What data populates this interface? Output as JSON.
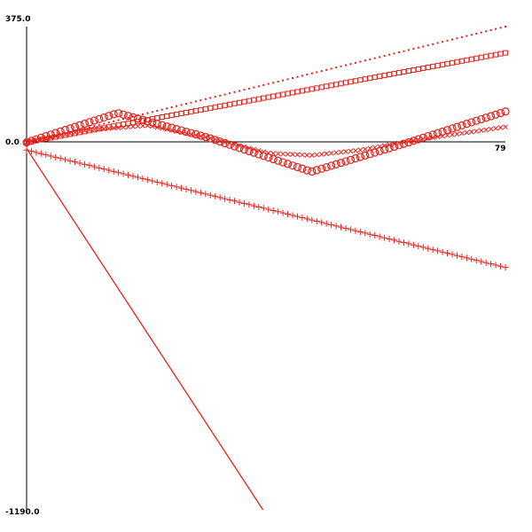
{
  "chart_data": {
    "type": "line",
    "title": "",
    "xlabel": "",
    "ylabel": "",
    "xlim": [
      0,
      79
    ],
    "ylim": [
      -1190,
      375
    ],
    "tick_labels": {
      "y_max": "375.0",
      "y_zero": "0.0",
      "y_min": "-1190.0",
      "x_max": "79"
    },
    "grid": false,
    "legend": "none",
    "color": "#e8201a",
    "series": [
      {
        "marker": "dot",
        "x": [
          0,
          79
        ],
        "y": [
          0,
          375
        ]
      },
      {
        "marker": "square",
        "x": [
          0,
          79
        ],
        "y": [
          0,
          290
        ]
      },
      {
        "marker": "circle",
        "x": [
          0,
          15,
          30,
          47,
          63,
          79
        ],
        "y": [
          0,
          95,
          15,
          -95,
          0,
          100
        ]
      },
      {
        "marker": "x",
        "x": [
          0,
          10,
          20,
          30,
          40,
          47,
          55,
          65,
          79
        ],
        "y": [
          0,
          40,
          55,
          15,
          -35,
          -42,
          -25,
          10,
          50
        ]
      },
      {
        "marker": "plus",
        "x": [
          0,
          79
        ],
        "y": [
          -25,
          -405
        ]
      },
      {
        "marker": "line",
        "x": [
          0,
          39
        ],
        "y": [
          -20,
          -1190
        ]
      }
    ]
  }
}
